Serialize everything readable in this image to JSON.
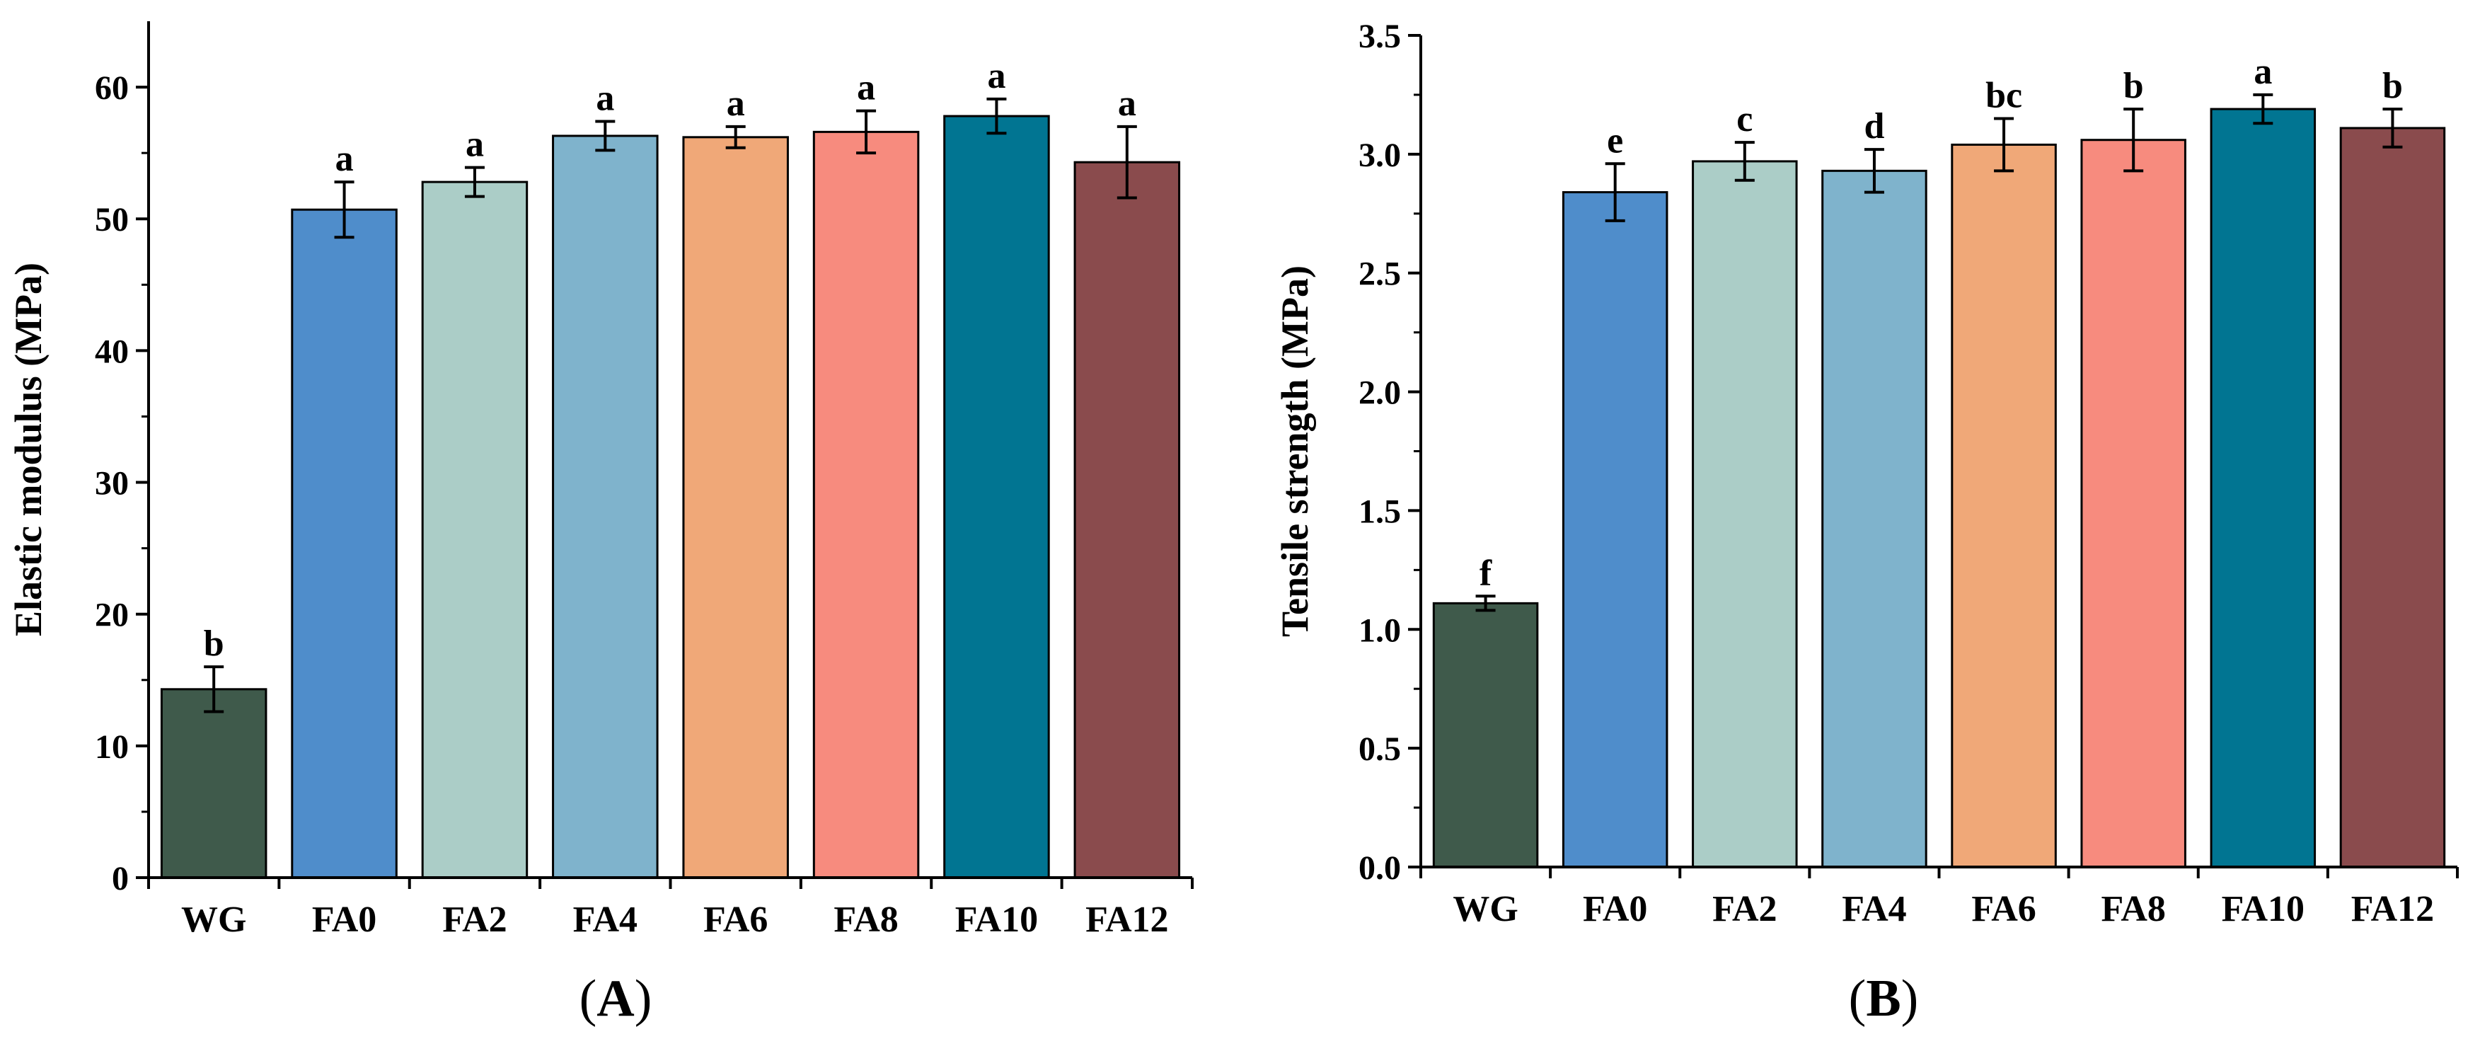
{
  "chart_data": [
    {
      "type": "bar",
      "panel_label": "A",
      "title": "",
      "xlabel": "",
      "ylabel": "Elastic modulus (MPa)",
      "ylim": [
        0,
        65
      ],
      "yticks": [
        0,
        10,
        20,
        30,
        40,
        50,
        60
      ],
      "ytick_labels": [
        "0",
        "10",
        "20",
        "30",
        "40",
        "50",
        "60"
      ],
      "categories": [
        "WG",
        "FA0",
        "FA2",
        "FA4",
        "FA6",
        "FA8",
        "FA10",
        "FA12"
      ],
      "values": [
        14.3,
        50.7,
        52.8,
        56.3,
        56.2,
        56.6,
        57.8,
        54.3
      ],
      "errors": [
        1.7,
        2.1,
        1.1,
        1.1,
        0.8,
        1.6,
        1.3,
        2.7
      ],
      "significance": [
        "b",
        "a",
        "a",
        "a",
        "a",
        "a",
        "a",
        "a"
      ],
      "colors": [
        "#3f5a4b",
        "#4f8dcb",
        "#abcdc7",
        "#7fb3cc",
        "#f0a878",
        "#f78b7e",
        "#017592",
        "#8a4b4d"
      ],
      "grid": false
    },
    {
      "type": "bar",
      "panel_label": "B",
      "title": "",
      "xlabel": "",
      "ylabel": "Tensile strength (MPa)",
      "ylim": [
        0,
        3.5
      ],
      "yticks": [
        0,
        0.5,
        1.0,
        1.5,
        2.0,
        2.5,
        3.0,
        3.5
      ],
      "ytick_labels": [
        "0.0",
        "0.5",
        "1.0",
        "1.5",
        "2.0",
        "2.5",
        "3.0",
        "3.5"
      ],
      "categories": [
        "WG",
        "FA0",
        "FA2",
        "FA4",
        "FA6",
        "FA8",
        "FA10",
        "FA12"
      ],
      "values": [
        1.11,
        2.84,
        2.97,
        2.93,
        3.04,
        3.06,
        3.19,
        3.11
      ],
      "errors": [
        0.03,
        0.12,
        0.08,
        0.09,
        0.11,
        0.13,
        0.06,
        0.08
      ],
      "significance": [
        "f",
        "e",
        "c",
        "d",
        "bc",
        "b",
        "a",
        "b"
      ],
      "colors": [
        "#3f5a4b",
        "#4f8dcb",
        "#abcdc7",
        "#7fb3cc",
        "#f0a878",
        "#f78b7e",
        "#017592",
        "#8a4b4d"
      ],
      "grid": false
    }
  ]
}
